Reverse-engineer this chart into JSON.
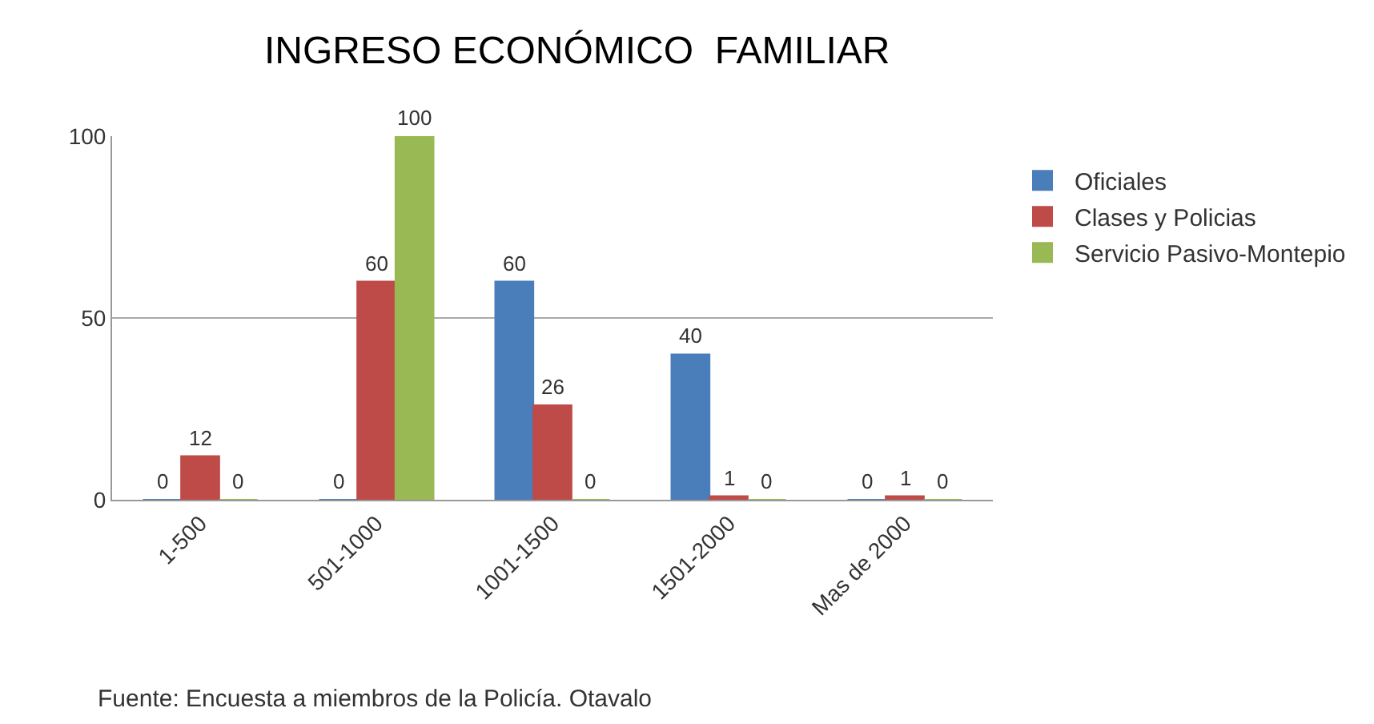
{
  "chart_data": {
    "type": "bar",
    "title": "INGRESO ECONÓMICO  FAMILIAR",
    "categories": [
      "1-500",
      "501-1000",
      "1001-1500",
      "1501-2000",
      "Mas de 2000"
    ],
    "series": [
      {
        "name": "Oficiales",
        "color": "#4a7ebb",
        "values": [
          0,
          0,
          60,
          40,
          0
        ]
      },
      {
        "name": "Clases y Policias",
        "color": "#be4b48",
        "values": [
          12,
          60,
          26,
          1,
          1
        ]
      },
      {
        "name": "Servicio Pasivo-Montepio",
        "color": "#98b954",
        "values": [
          0,
          100,
          0,
          0,
          0
        ]
      }
    ],
    "ylim": [
      0,
      100
    ],
    "yticks": [
      0,
      50,
      100
    ],
    "grid": "y",
    "data_labels": true,
    "legend": "right",
    "annotations": [
      "Fuente: Encuesta a miembros de la Policía. Otavalo"
    ]
  }
}
